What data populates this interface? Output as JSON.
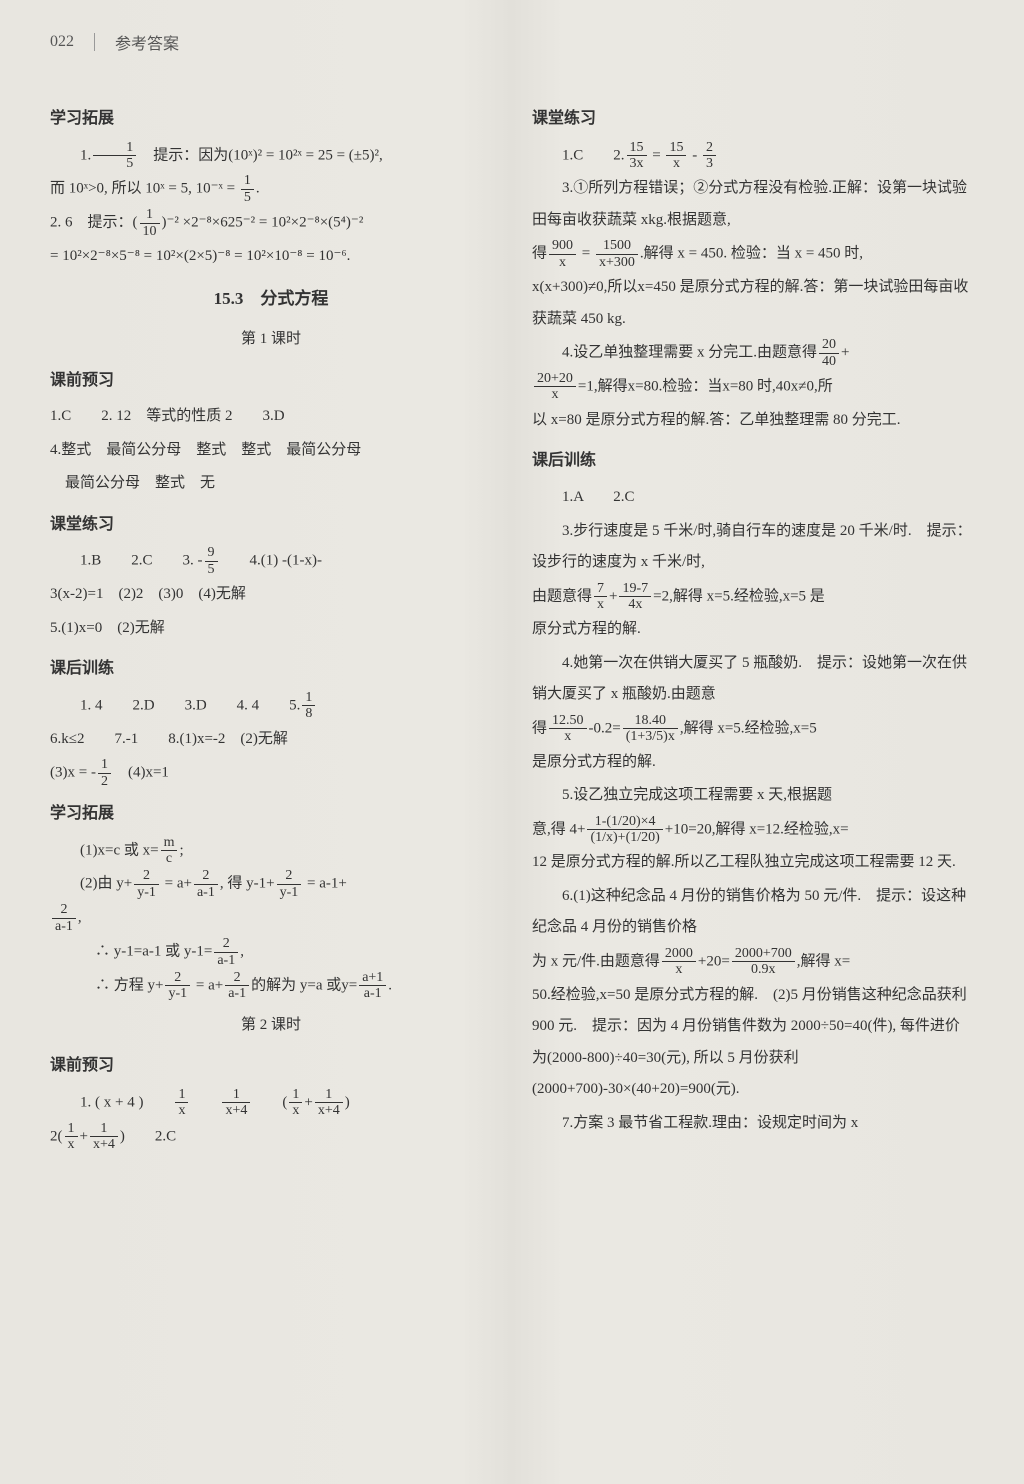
{
  "header": {
    "pageNumber": "022",
    "title": "参考答案"
  },
  "left": {
    "s1_title": "学习拓展",
    "s1_l1a": "1.",
    "s1_l1_frac1n": "1",
    "s1_l1_frac1d": "5",
    "s1_l1b": "　提示：因为(10ˣ)² = 10²ˣ = 25 = (±5)²,",
    "s1_l2a": "而 10ˣ>0, 所以 10ˣ = 5, 10⁻ˣ = ",
    "s1_l2_frac1n": "1",
    "s1_l2_frac1d": "5",
    "s1_l2b": ".",
    "s1_l3a": "2. 6　提示：",
    "s1_l3_frac1n": "1",
    "s1_l3_frac1d": "10",
    "s1_l3b": "⁻² ×2⁻⁸×625⁻² = 10²×2⁻⁸×(5⁴)⁻²",
    "s1_l4": "= 10²×2⁻⁸×5⁻⁸ = 10²×(2×5)⁻⁸ = 10²×10⁻⁸ = 10⁻⁶.",
    "ch_title": "15.3　分式方程",
    "ch_sub1": "第 1 课时",
    "s2_title": "课前预习",
    "s2_l1": "1.C　　2. 12　等式的性质 2　　3.D",
    "s2_l2": "4.整式　最简公分母　整式　整式　最简公分母",
    "s2_l3": "　最简公分母　整式　无",
    "s3_title": "课堂练习",
    "s3_l1a": "　　1.B　　2.C　　3. -",
    "s3_l1_frac1n": "9",
    "s3_l1_frac1d": "5",
    "s3_l1b": "　　4.(1) -(1-x)-",
    "s3_l2": "3(x-2)=1　(2)2　(3)0　(4)无解",
    "s3_l3": "5.(1)x=0　(2)无解",
    "s4_title": "课后训练",
    "s4_l1a": "　　1. 4　　2.D　　3.D　　4. 4　　5.",
    "s4_l1_frac1n": "1",
    "s4_l1_frac1d": "8",
    "s4_l2": "6.k≤2　　7.-1　　8.(1)x=-2　(2)无解",
    "s4_l3a": "(3)x = -",
    "s4_l3_frac1n": "1",
    "s4_l3_frac1d": "2",
    "s4_l3b": "　(4)x=1",
    "s5_title": "学习拓展",
    "s5_l1a": "　　(1)x=c 或 x=",
    "s5_l1_frac1n": "m",
    "s5_l1_frac1d": "c",
    "s5_l1b": ";",
    "s5_l2a": "　　(2)由 y+",
    "s5_l2_f1n": "2",
    "s5_l2_f1d": "y-1",
    "s5_l2b": " = a+",
    "s5_l2_f2n": "2",
    "s5_l2_f2d": "a-1",
    "s5_l2c": ", 得 y-1+",
    "s5_l2_f3n": "2",
    "s5_l2_f3d": "y-1",
    "s5_l2d": " = a-1+",
    "s5_l3_f1n": "2",
    "s5_l3_f1d": "a-1",
    "s5_l3a": ",",
    "s5_l4a": "　　　∴ y-1=a-1 或 y-1=",
    "s5_l4_f1n": "2",
    "s5_l4_f1d": "a-1",
    "s5_l4b": ",",
    "s5_l5a": "　　　∴ 方程 y+",
    "s5_l5_f1n": "2",
    "s5_l5_f1d": "y-1",
    "s5_l5b": " = a+",
    "s5_l5_f2n": "2",
    "s5_l5_f2d": "a-1",
    "s5_l5c": "的解为 y=a 或y=",
    "s5_l5_f3n": "a+1",
    "s5_l5_f3d": "a-1",
    "s5_l5d": ".",
    "ch_sub2": "第 2 课时",
    "s6_title": "课前预习",
    "s6_l1a": "　　1. ( x + 4 )　　",
    "s6_l1_f1n": "1",
    "s6_l1_f1d": "x",
    "s6_l1b": "　　",
    "s6_l1_f2n": "1",
    "s6_l1_f2d": "x+4",
    "s6_l1c": "　　(",
    "s6_l1_f3n": "1",
    "s6_l1_f3d": "x",
    "s6_l1d": "+",
    "s6_l1_f4n": "1",
    "s6_l1_f4d": "x+4",
    "s6_l1e": ")",
    "s6_l2a": "2(",
    "s6_l2_f1n": "1",
    "s6_l2_f1d": "x",
    "s6_l2b": "+",
    "s6_l2_f2n": "1",
    "s6_l2_f2d": "x+4",
    "s6_l2c": ")　　2.C"
  },
  "right": {
    "s1_title": "课堂练习",
    "s1_l1a": "　　1.C　　2.",
    "s1_l1_f1n": "15",
    "s1_l1_f1d": "3x",
    "s1_l1b": " = ",
    "s1_l1_f2n": "15",
    "s1_l1_f2d": "x",
    "s1_l1c": " - ",
    "s1_l1_f3n": "2",
    "s1_l1_f3d": "3",
    "s1_l2": "　　3.①所列方程错误；②分式方程没有检验.正解：设第一块试验田每亩收获蔬菜 xkg.根据题意,",
    "s1_l3a": "得",
    "s1_l3_f1n": "900",
    "s1_l3_f1d": "x",
    "s1_l3b": " = ",
    "s1_l3_f2n": "1500",
    "s1_l3_f2d": "x+300",
    "s1_l3c": ".解得 x = 450. 检验：当 x = 450 时,",
    "s1_l4": "x(x+300)≠0,所以x=450 是原分式方程的解.答：第一块试验田每亩收获蔬菜 450 kg.",
    "s1_l5a": "　　4.设乙单独整理需要 x 分完工.由题意得",
    "s1_l5_f1n": "20",
    "s1_l5_f1d": "40",
    "s1_l5b": "+",
    "s1_l6_f1n": "20+20",
    "s1_l6_f1d": "x",
    "s1_l6a": "=1,解得x=80.检验：当x=80 时,40x≠0,所",
    "s1_l7": "以 x=80 是原分式方程的解.答：乙单独整理需 80 分完工.",
    "s2_title": "课后训练",
    "s2_l1": "　　1.A　　2.C",
    "s2_l2": "　　3.步行速度是 5 千米/时,骑自行车的速度是 20 千米/时.　提示：设步行的速度为 x 千米/时,",
    "s2_l3a": "由题意得",
    "s2_l3_f1n": "7",
    "s2_l3_f1d": "x",
    "s2_l3b": "+",
    "s2_l3_f2n": "19-7",
    "s2_l3_f2d": "4x",
    "s2_l3c": "=2,解得 x=5.经检验,x=5 是",
    "s2_l4": "原分式方程的解.",
    "s2_l5": "　　4.她第一次在供销大厦买了 5 瓶酸奶.　提示：设她第一次在供销大厦买了 x 瓶酸奶.由题意",
    "s2_l6a": "得",
    "s2_l6_f1n": "12.50",
    "s2_l6_f1d": "x",
    "s2_l6b": "-0.2=",
    "s2_l6_f2n": "18.40",
    "s2_l6_f2d": "(1+3/5)x",
    "s2_l6c": ",解得 x=5.经检验,x=5",
    "s2_l7": "是原分式方程的解.",
    "s2_l8": "　　5.设乙独立完成这项工程需要 x 天,根据题",
    "s2_l9a": "意,得 4+",
    "s2_l9_f1n": "1-(1/20)×4",
    "s2_l9_f1d": "(1/x)+(1/20)",
    "s2_l9b": "+10=20,解得 x=12.经检验,x=",
    "s2_l10": "12 是原分式方程的解.所以乙工程队独立完成这项工程需要 12 天.",
    "s2_l11": "　　6.(1)这种纪念品 4 月份的销售价格为 50 元/件.　提示：设这种纪念品 4 月份的销售价格",
    "s2_l12a": "为 x 元/件.由题意得",
    "s2_l12_f1n": "2000",
    "s2_l12_f1d": "x",
    "s2_l12b": "+20=",
    "s2_l12_f2n": "2000+700",
    "s2_l12_f2d": "0.9x",
    "s2_l12c": ",解得 x=",
    "s2_l13": "50.经检验,x=50 是原分式方程的解.　(2)5 月份销售这种纪念品获利 900 元.　提示：因为 4 月份销售件数为 2000÷50=40(件), 每件进价为(2000-800)÷40=30(元), 所以 5 月份获利(2000+700)-30×(40+20)=900(元).",
    "s2_l14": "　　7.方案 3 最节省工程款.理由：设规定时间为 x"
  }
}
